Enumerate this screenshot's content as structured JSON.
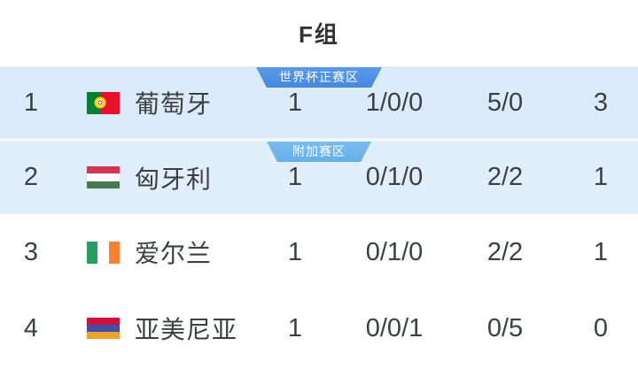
{
  "header": {
    "title": "F组"
  },
  "zones": [
    {
      "label": "世界杯正赛区",
      "color": "#4a8ee3"
    },
    {
      "label": "附加赛区",
      "color": "#6fb5ea"
    }
  ],
  "colors": {
    "row_highlight_top": "#dcebf9",
    "row_highlight_second": "#e1eefb",
    "text": "#3c4043"
  },
  "rows": [
    {
      "rank": "1",
      "team": "葡萄牙",
      "flag": "portugal-flag-icon",
      "played": "1",
      "record": "1/0/0",
      "goals": "5/0",
      "points": "3"
    },
    {
      "rank": "2",
      "team": "匈牙利",
      "flag": "hungary-flag-icon",
      "played": "1",
      "record": "0/1/0",
      "goals": "2/2",
      "points": "1"
    },
    {
      "rank": "3",
      "team": "爱尔兰",
      "flag": "ireland-flag-icon",
      "played": "1",
      "record": "0/1/0",
      "goals": "2/2",
      "points": "1"
    },
    {
      "rank": "4",
      "team": "亚美尼亚",
      "flag": "armenia-flag-icon",
      "played": "1",
      "record": "0/0/1",
      "goals": "0/5",
      "points": "0"
    }
  ]
}
